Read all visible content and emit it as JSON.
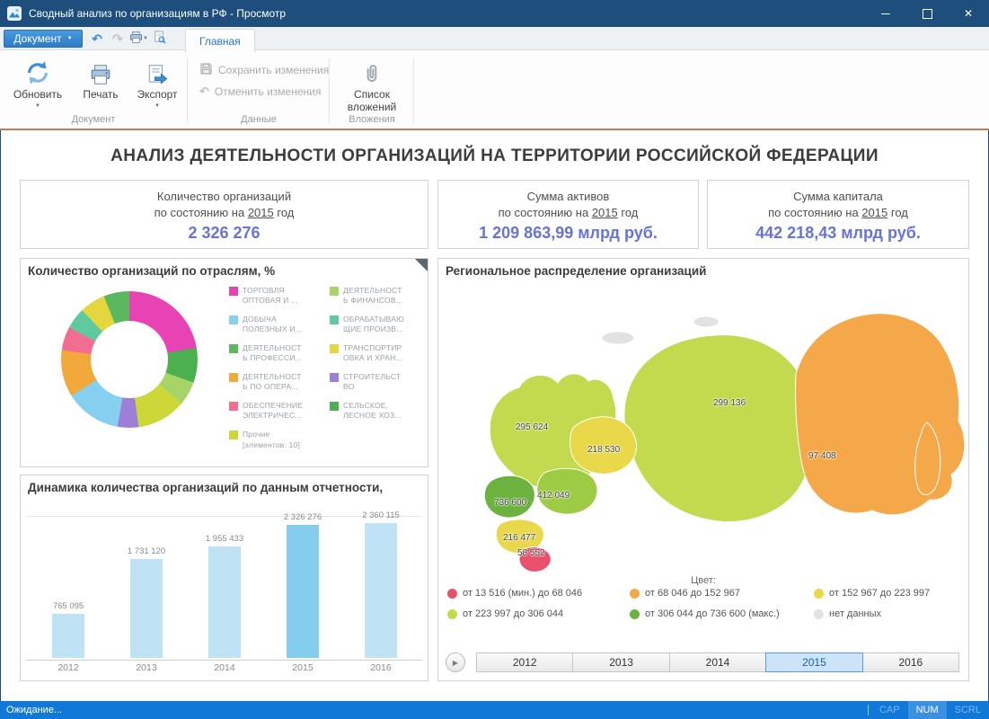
{
  "window": {
    "title": "Сводный анализ по организациям в РФ - Просмотр"
  },
  "quick_access": {
    "document_button": "Документ",
    "tab_home": "Главная"
  },
  "ribbon": {
    "refresh_label": "Обновить",
    "print_label": "Печать",
    "export_label": "Экспорт",
    "save_label": "Сохранить изменения",
    "cancel_label": "Отменить изменения",
    "attachments_label": "Список вложений",
    "group_document": "Документ",
    "group_data": "Данные",
    "group_attachments": "Вложения"
  },
  "content": {
    "main_title": "АНАЛИЗ ДЕЯТЕЛЬНОСТИ ОРГАНИЗАЦИЙ НА ТЕРРИТОРИИ РОССИЙСКОЙ ФЕДЕРАЦИИ",
    "kpi_cards": [
      {
        "title": "Количество организаций",
        "subtitle_prefix": "по состоянию на",
        "year": "2015",
        "subtitle_suffix": "год",
        "value": "2 326 276"
      },
      {
        "title": "Сумма активов",
        "subtitle_prefix": "по состоянию на",
        "year": "2015",
        "subtitle_suffix": "год",
        "value": "1 209 863,99 млрд руб."
      },
      {
        "title": "Сумма капитала",
        "subtitle_prefix": "по состоянию на",
        "year": "2015",
        "subtitle_suffix": "год",
        "value": "442 218,43 млрд руб."
      }
    ],
    "industry_panel": {
      "title": "Количество организаций по отраслям, %",
      "chart_data": {
        "type": "pie",
        "slices": [
          {
            "label": "ТОРГОВЛЯ ОПТОВАЯ И ...",
            "color": "#e743b5",
            "value": 22.2
          },
          {
            "label": "СЕЛЬСКОЕ, ЛЕСНОЕ ХОЗ...",
            "color": "#4caf50",
            "value": 8.3
          },
          {
            "label": "ДЕЯТЕЛЬНОСТЬ ФИНАНСОВ...",
            "color": "#a6d467",
            "value": 5.6
          },
          {
            "label": "Прочие [элементов: 10]",
            "color": "#cdd838",
            "value": 11.7
          },
          {
            "label": "СТРОИТЕЛЬСТВО",
            "color": "#9e7fd8",
            "value": 5.0
          },
          {
            "label": "ДОБЫЧА ПОЛЕЗНЫХ И...",
            "color": "#86cfee",
            "value": 13.3
          },
          {
            "label": "ДЕЯТЕЛЬНОСТЬ ПО ОПЕРА...",
            "color": "#f2a93c",
            "value": 11.1
          },
          {
            "label": "ОБЕСПЕЧЕНИЕ ЭЛЕКТРИЧЕС...",
            "color": "#f26d8f",
            "value": 5.6
          },
          {
            "label": "ОБРАБАТЫВАЮЩИЕ ПРОИЗВ...",
            "color": "#5fc9a0",
            "value": 5.0
          },
          {
            "label": "ТРАНСПОРТИРОВКА И ХРАН...",
            "color": "#e3d63e",
            "value": 6.1
          },
          {
            "label": "ДЕЯТЕЛЬНОСТЬ ПРОФЕССИ...",
            "color": "#5bb85e",
            "value": 6.1
          }
        ]
      },
      "legend_left": [
        {
          "line1": "ТОРГОВЛЯ",
          "line2": "ОПТОВАЯ И ...",
          "color": "#e743b5"
        },
        {
          "line1": "ДОБЫЧА",
          "line2": "ПОЛЕЗНЫХ И...",
          "color": "#86cfee"
        },
        {
          "line1": "ДЕЯТЕЛЬНОСТ",
          "line2": "Ь ПРОФЕССИ...",
          "color": "#5bb85e"
        },
        {
          "line1": "ДЕЯТЕЛЬНОСТ",
          "line2": "Ь ПО ОПЕРА...",
          "color": "#f2a93c"
        },
        {
          "line1": "ОБЕСПЕЧЕНИЕ",
          "line2": "ЭЛЕКТРИЧЕС...",
          "color": "#f26d8f"
        },
        {
          "line1": "Прочие",
          "line2": "[элементов: 10]",
          "color": "#cdd838"
        }
      ],
      "legend_right": [
        {
          "line1": "ДЕЯТЕЛЬНОСТ",
          "line2": "Ь ФИНАНСОВ...",
          "color": "#a6d467"
        },
        {
          "line1": "ОБРАБАТЫВАЮ",
          "line2": "ЩИЕ ПРОИЗВ...",
          "color": "#5fc9a0"
        },
        {
          "line1": "ТРАНСПОРТИР",
          "line2": "ОВКА И ХРАН...",
          "color": "#e3d63e"
        },
        {
          "line1": "СТРОИТЕЛЬСТ",
          "line2": "ВО",
          "color": "#9e7fd8"
        },
        {
          "line1": "СЕЛЬСКОЕ,",
          "line2": "ЛЕСНОЕ ХОЗ...",
          "color": "#4caf50"
        }
      ]
    },
    "dynamics_panel": {
      "title": "Динамика количества организаций по данным отчетности,",
      "chart_data": {
        "type": "bar",
        "categories": [
          "2012",
          "2013",
          "2014",
          "2015",
          "2016"
        ],
        "values": [
          765095,
          1731120,
          1955433,
          2326276,
          2360115
        ],
        "value_labels": [
          "765 095",
          "1 731 120",
          "1 955 433",
          "2 326 276",
          "2 360 115"
        ],
        "highlight_index": 3,
        "bar_color": "#bfe3f4",
        "bar_highlight_color": "#85cdec",
        "scale_max": 2360115
      }
    },
    "map_panel": {
      "title": "Региональное распределение организаций",
      "regions": [
        {
          "label": "295 624",
          "value": 295624,
          "range": "range4_yellowgreen"
        },
        {
          "label": "218 530",
          "value": 218530,
          "range": "range3_yellow"
        },
        {
          "label": "299 136",
          "value": 299136,
          "range": "range4_yellowgreen"
        },
        {
          "label": "97 408",
          "value": 97408,
          "range": "range2_orange"
        },
        {
          "label": "412 049",
          "value": 412049,
          "range": "range5_green"
        },
        {
          "label": "736 600",
          "value": 736600,
          "range": "range5_green"
        },
        {
          "label": "216 477",
          "value": 216477,
          "range": "range3_yellow"
        },
        {
          "label": "58 552",
          "value": 58552,
          "range": "range1_red"
        }
      ],
      "palette": {
        "range1_red": "#e8506c",
        "range2_orange": "#f5a84a",
        "range3_yellow": "#e8d84a",
        "range4_yellowgreen": "#c3d94e",
        "range5_green": "#6cb23e",
        "green_mid": "#9dcb44",
        "no_data": "#e2e2e2"
      },
      "legend_title": "Цвет:",
      "legend": [
        {
          "label": "от 13 516 (мин.) до 68 046",
          "color": "#e8506c"
        },
        {
          "label": "от 68 046 до 152 967",
          "color": "#f5a84a"
        },
        {
          "label": "от 152 967 до 223 997",
          "color": "#e8d84a"
        },
        {
          "label": "от 223 997 до 306 044",
          "color": "#c3d94e"
        },
        {
          "label": "от 306 044 до 736 600 (макс.)",
          "color": "#6cb23e"
        },
        {
          "label": "нет данных",
          "color": "#e2e2e2"
        }
      ],
      "years": [
        "2012",
        "2013",
        "2014",
        "2015",
        "2016"
      ],
      "selected_year": "2015"
    }
  },
  "status_bar": {
    "text": "Ожидание...",
    "indicators": [
      {
        "label": "CAP",
        "active": false
      },
      {
        "label": "NUM",
        "active": true
      },
      {
        "label": "SCRL",
        "active": false
      }
    ]
  }
}
